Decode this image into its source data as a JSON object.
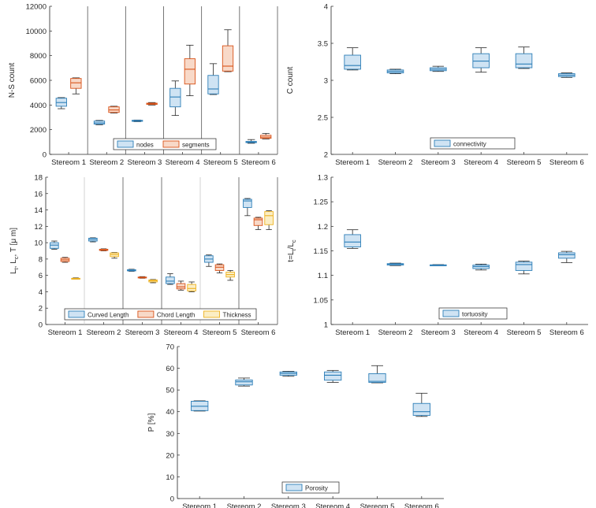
{
  "colors": {
    "blue_fill": "#cfe3f3",
    "blue_edge": "#2e7fb8",
    "orange_fill": "#f8d9c8",
    "orange_edge": "#d95319",
    "yellow_fill": "#fbeec4",
    "yellow_edge": "#edb120",
    "median": "#1f5f8a",
    "whisker": "#262626",
    "axis": "#262626",
    "divider": "#555555",
    "divider_light": "#c8c8c8"
  },
  "chart_data": [
    {
      "id": "ns",
      "type": "box",
      "ylabel": "N-S count",
      "ylim": [
        0,
        12000
      ],
      "yticks": [
        0,
        2000,
        4000,
        6000,
        8000,
        10000,
        12000
      ],
      "ytick_labels": [
        "0",
        "2000",
        "4000",
        "6000",
        "8000",
        "10000",
        "12000"
      ],
      "categories": [
        "Stereom 1",
        "Stereom 2",
        "Stereom 3",
        "Stereom 4",
        "Stereom 5",
        "Stereom 6"
      ],
      "dividers": "dark",
      "series": [
        {
          "name": "nodes",
          "color": "blue",
          "boxes": [
            {
              "min": 3700,
              "q1": 3900,
              "median": 4200,
              "q3": 4550,
              "max": 4600
            },
            {
              "min": 2400,
              "q1": 2450,
              "median": 2550,
              "q3": 2700,
              "max": 2750
            },
            {
              "min": 2650,
              "q1": 2680,
              "median": 2720,
              "q3": 2760,
              "max": 2780
            },
            {
              "min": 3150,
              "q1": 3850,
              "median": 4650,
              "q3": 5350,
              "max": 5950
            },
            {
              "min": 4850,
              "q1": 4900,
              "median": 5300,
              "q3": 6400,
              "max": 7350
            },
            {
              "min": 900,
              "q1": 950,
              "median": 1000,
              "q3": 1050,
              "max": 1200
            }
          ]
        },
        {
          "name": "segments",
          "color": "orange",
          "boxes": [
            {
              "min": 4900,
              "q1": 5350,
              "median": 5800,
              "q3": 6150,
              "max": 6200
            },
            {
              "min": 3350,
              "q1": 3400,
              "median": 3600,
              "q3": 3850,
              "max": 3900
            },
            {
              "min": 4000,
              "q1": 4050,
              "median": 4100,
              "q3": 4150,
              "max": 4200
            },
            {
              "min": 4750,
              "q1": 5700,
              "median": 6900,
              "q3": 7750,
              "max": 8850
            },
            {
              "min": 6700,
              "q1": 6750,
              "median": 7150,
              "q3": 8800,
              "max": 10100
            },
            {
              "min": 1250,
              "q1": 1300,
              "median": 1400,
              "q3": 1550,
              "max": 1700
            }
          ]
        }
      ],
      "legend": [
        "nodes",
        "segments"
      ]
    },
    {
      "id": "conn",
      "type": "box",
      "ylabel": "C count",
      "ylim": [
        2,
        4
      ],
      "yticks": [
        2,
        2.5,
        3,
        3.5,
        4
      ],
      "ytick_labels": [
        "2",
        "2.5",
        "3",
        "3.5",
        "4"
      ],
      "categories": [
        "Stereom 1",
        "Stereom 2",
        "Stereom 3",
        "Stereom 4",
        "Stereom 5",
        "Stereom 6"
      ],
      "dividers": "none",
      "series": [
        {
          "name": "connectivity",
          "color": "blue",
          "boxes": [
            {
              "min": 3.14,
              "q1": 3.15,
              "median": 3.2,
              "q3": 3.34,
              "max": 3.44
            },
            {
              "min": 3.09,
              "q1": 3.1,
              "median": 3.12,
              "q3": 3.14,
              "max": 3.15
            },
            {
              "min": 3.12,
              "q1": 3.13,
              "median": 3.15,
              "q3": 3.17,
              "max": 3.19
            },
            {
              "min": 3.11,
              "q1": 3.17,
              "median": 3.26,
              "q3": 3.36,
              "max": 3.44
            },
            {
              "min": 3.16,
              "q1": 3.17,
              "median": 3.22,
              "q3": 3.36,
              "max": 3.45
            },
            {
              "min": 3.04,
              "q1": 3.05,
              "median": 3.07,
              "q3": 3.09,
              "max": 3.1
            }
          ]
        }
      ],
      "legend": [
        "connectivity"
      ]
    },
    {
      "id": "len",
      "type": "box",
      "ylabel_main": "L",
      "ylabel_parts": [
        {
          "t": "L"
        },
        {
          "t": "t",
          "sub": true
        },
        {
          "t": ", L"
        },
        {
          "t": "c",
          "sub": true
        },
        {
          "t": ", T [μ m]"
        }
      ],
      "ylim": [
        0,
        18
      ],
      "yticks": [
        0,
        2,
        4,
        6,
        8,
        10,
        12,
        14,
        16,
        18
      ],
      "ytick_labels": [
        "0",
        "2",
        "4",
        "6",
        "8",
        "10",
        "12",
        "14",
        "16",
        "18"
      ],
      "categories": [
        "Stereom 1",
        "Stereom 2",
        "Stereom 3",
        "Stereom 4",
        "Stereom 5",
        "Stereom 6"
      ],
      "dividers": "mixed",
      "series": [
        {
          "name": "Curved Length",
          "color": "blue",
          "boxes": [
            {
              "min": 9.2,
              "q1": 9.3,
              "median": 9.7,
              "q3": 10.0,
              "max": 10.2
            },
            {
              "min": 10.1,
              "q1": 10.2,
              "median": 10.4,
              "q3": 10.55,
              "max": 10.6
            },
            {
              "min": 6.5,
              "q1": 6.55,
              "median": 6.6,
              "q3": 6.7,
              "max": 6.75
            },
            {
              "min": 4.9,
              "q1": 5.0,
              "median": 5.3,
              "q3": 5.8,
              "max": 6.2
            },
            {
              "min": 7.1,
              "q1": 7.6,
              "median": 8.0,
              "q3": 8.4,
              "max": 8.5
            },
            {
              "min": 13.3,
              "q1": 14.3,
              "median": 15.1,
              "q3": 15.3,
              "max": 15.4
            }
          ]
        },
        {
          "name": "Chord Length",
          "color": "orange",
          "boxes": [
            {
              "min": 7.6,
              "q1": 7.7,
              "median": 7.9,
              "q3": 8.1,
              "max": 8.2
            },
            {
              "min": 9.0,
              "q1": 9.05,
              "median": 9.1,
              "q3": 9.2,
              "max": 9.25
            },
            {
              "min": 5.65,
              "q1": 5.7,
              "median": 5.75,
              "q3": 5.8,
              "max": 5.85
            },
            {
              "min": 4.2,
              "q1": 4.35,
              "median": 4.6,
              "q3": 5.0,
              "max": 5.3
            },
            {
              "min": 6.3,
              "q1": 6.6,
              "median": 7.0,
              "q3": 7.3,
              "max": 7.4
            },
            {
              "min": 11.6,
              "q1": 12.1,
              "median": 12.8,
              "q3": 13.0,
              "max": 13.1
            }
          ]
        },
        {
          "name": "Thickness",
          "color": "yellow",
          "boxes": [
            {
              "min": 5.55,
              "q1": 5.6,
              "median": 5.62,
              "q3": 5.65,
              "max": 5.7
            },
            {
              "min": 8.1,
              "q1": 8.3,
              "median": 8.55,
              "q3": 8.75,
              "max": 8.8
            },
            {
              "min": 5.1,
              "q1": 5.2,
              "median": 5.35,
              "q3": 5.45,
              "max": 5.5
            },
            {
              "min": 4.0,
              "q1": 4.1,
              "median": 4.4,
              "q3": 4.9,
              "max": 5.2
            },
            {
              "min": 5.4,
              "q1": 5.8,
              "median": 6.1,
              "q3": 6.4,
              "max": 6.6
            },
            {
              "min": 11.6,
              "q1": 12.2,
              "median": 13.3,
              "q3": 13.8,
              "max": 13.9
            }
          ]
        }
      ],
      "legend": [
        "Curved Length",
        "Chord Length",
        "Thickness"
      ]
    },
    {
      "id": "tort",
      "type": "box",
      "ylabel_parts": [
        {
          "t": "t=L"
        },
        {
          "t": "t",
          "sub": true
        },
        {
          "t": "/L"
        },
        {
          "t": "c",
          "sub": true
        }
      ],
      "ylim": [
        1,
        1.3
      ],
      "yticks": [
        1,
        1.05,
        1.1,
        1.15,
        1.2,
        1.25,
        1.3
      ],
      "ytick_labels": [
        "1",
        "1.05",
        "1.1",
        "1.15",
        "1.2",
        "1.25",
        "1.3"
      ],
      "categories": [
        "Stereom 1",
        "Stereom 2",
        "Stereom 3",
        "Stereom 4",
        "Stereom 5",
        "Stereom 6"
      ],
      "dividers": "none",
      "series": [
        {
          "name": "tortuosity",
          "color": "blue",
          "boxes": [
            {
              "min": 1.155,
              "q1": 1.158,
              "median": 1.168,
              "q3": 1.183,
              "max": 1.193
            },
            {
              "min": 1.12,
              "q1": 1.121,
              "median": 1.123,
              "q3": 1.124,
              "max": 1.125
            },
            {
              "min": 1.12,
              "q1": 1.1205,
              "median": 1.121,
              "q3": 1.1215,
              "max": 1.122
            },
            {
              "min": 1.111,
              "q1": 1.114,
              "median": 1.118,
              "q3": 1.121,
              "max": 1.123
            },
            {
              "min": 1.103,
              "q1": 1.11,
              "median": 1.122,
              "q3": 1.127,
              "max": 1.129
            },
            {
              "min": 1.126,
              "q1": 1.135,
              "median": 1.142,
              "q3": 1.146,
              "max": 1.149
            }
          ]
        }
      ],
      "legend": [
        "tortuosity"
      ]
    },
    {
      "id": "por",
      "type": "box",
      "ylabel": "P [%]",
      "ylim": [
        0,
        70
      ],
      "yticks": [
        0,
        10,
        20,
        30,
        40,
        50,
        60,
        70
      ],
      "ytick_labels": [
        "0",
        "10",
        "20",
        "30",
        "40",
        "50",
        "60",
        "70"
      ],
      "categories": [
        "Stereom 1",
        "Stereom 2",
        "Stereom 3",
        "Stereom 4",
        "Stereom 5",
        "Stereom 6"
      ],
      "dividers": "none",
      "series": [
        {
          "name": "Porosity",
          "color": "blue",
          "boxes": [
            {
              "min": 40.3,
              "q1": 40.5,
              "median": 42.5,
              "q3": 44.8,
              "max": 45.0
            },
            {
              "min": 51.8,
              "q1": 52.3,
              "median": 53.8,
              "q3": 54.6,
              "max": 55.5
            },
            {
              "min": 56.3,
              "q1": 56.8,
              "median": 57.6,
              "q3": 58.3,
              "max": 58.6
            },
            {
              "min": 53.5,
              "q1": 54.5,
              "median": 56.8,
              "q3": 58.3,
              "max": 59.0
            },
            {
              "min": 53.3,
              "q1": 53.5,
              "median": 54.0,
              "q3": 57.5,
              "max": 61.2
            },
            {
              "min": 37.8,
              "q1": 38.3,
              "median": 40.0,
              "q3": 43.8,
              "max": 48.5
            }
          ]
        }
      ],
      "legend": [
        "Porosity"
      ]
    }
  ]
}
